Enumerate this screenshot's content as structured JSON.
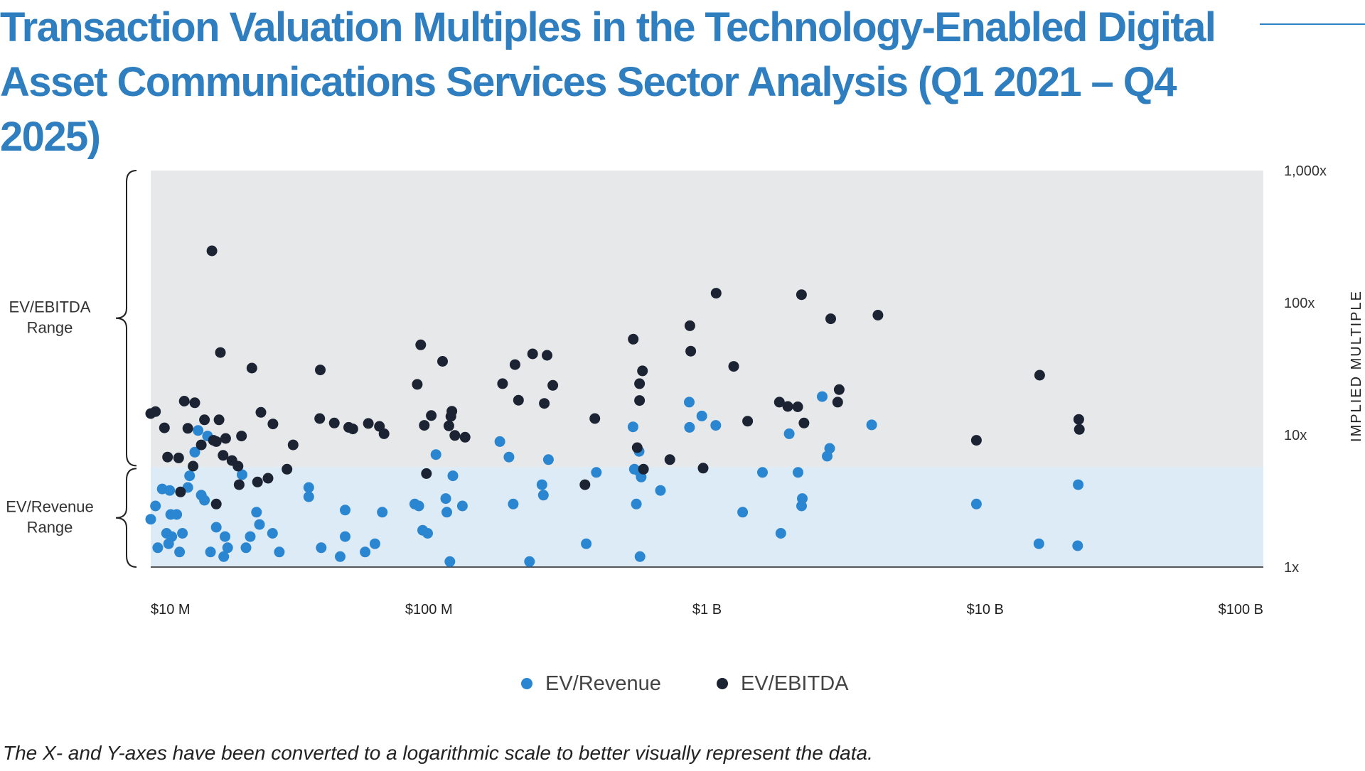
{
  "page": {
    "title": "Transaction Valuation Multiples in the Technology-Enabled Digital Asset Communications Services Sector Analysis (Q1 2021 – Q4 2025)",
    "footnote": "The X- and Y-axes have been converted to a logarithmic scale to better visually represent the data.",
    "colors": {
      "title": "#2f7fc0",
      "ev_revenue": "#2a86d1",
      "ev_ebitda": "#1c2333",
      "ebitda_band": "#e7e8ea",
      "revenue_band": "#ddebf7"
    }
  },
  "chart_data": {
    "type": "scatter",
    "x_scale": "log",
    "y_scale": "log",
    "xlim": [
      10,
      100000
    ],
    "ylim": [
      1,
      1000
    ],
    "x_ticks": [
      "$10 M",
      "$100 M",
      "$1 B",
      "$10 B",
      "$100 B"
    ],
    "y_ticks": [
      "1x",
      "10x",
      "100x",
      "1,000x"
    ],
    "ylabel": "IMPLIED MULTIPLE",
    "grid": false,
    "legend_position": "bottom-center",
    "bands": [
      {
        "label": "EV/EBITDA Range",
        "y_range": [
          5.7,
          1000
        ]
      },
      {
        "label": "EV/Revenue Range",
        "y_range": [
          1,
          5.7
        ]
      }
    ],
    "series": [
      {
        "name": "EV/Revenue",
        "color": "#2a86d1",
        "points": [
          [
            10,
            2.3
          ],
          [
            10.4,
            2.9
          ],
          [
            10.6,
            1.4
          ],
          [
            11,
            3.9
          ],
          [
            11.4,
            1.8
          ],
          [
            11.6,
            1.5
          ],
          [
            11.7,
            3.8
          ],
          [
            11.8,
            2.5
          ],
          [
            11.9,
            1.7
          ],
          [
            12.4,
            2.5
          ],
          [
            12.7,
            1.3
          ],
          [
            13,
            1.8
          ],
          [
            13.6,
            4
          ],
          [
            13.8,
            4.9
          ],
          [
            14.4,
            7.4
          ],
          [
            14.8,
            10.8
          ],
          [
            15.2,
            3.5
          ],
          [
            15.6,
            3.2
          ],
          [
            16,
            9.8
          ],
          [
            16.4,
            1.3
          ],
          [
            17.2,
            2
          ],
          [
            18.3,
            1.2
          ],
          [
            18.5,
            1.7
          ],
          [
            18.9,
            1.4
          ],
          [
            21.3,
            5
          ],
          [
            22,
            1.4
          ],
          [
            22.8,
            1.7
          ],
          [
            24,
            2.6
          ],
          [
            24.6,
            2.1
          ],
          [
            27.4,
            1.8
          ],
          [
            29,
            1.3
          ],
          [
            37,
            4
          ],
          [
            37,
            3.4
          ],
          [
            41,
            1.4
          ],
          [
            48,
            1.2
          ],
          [
            50,
            2.7
          ],
          [
            50,
            1.7
          ],
          [
            59,
            1.3
          ],
          [
            64,
            1.5
          ],
          [
            68,
            2.6
          ],
          [
            89,
            3
          ],
          [
            92,
            2.9
          ],
          [
            95,
            1.9
          ],
          [
            99,
            1.8
          ],
          [
            106,
            7.1
          ],
          [
            115,
            3.3
          ],
          [
            116,
            2.6
          ],
          [
            119,
            1.1
          ],
          [
            122,
            4.9
          ],
          [
            132,
            2.9
          ],
          [
            180,
            8.9
          ],
          [
            194,
            6.8
          ],
          [
            201,
            3
          ],
          [
            230,
            1.1
          ],
          [
            255,
            4.2
          ],
          [
            258,
            3.5
          ],
          [
            269,
            6.5
          ],
          [
            368,
            1.5
          ],
          [
            400,
            5.2
          ],
          [
            542,
            11.5
          ],
          [
            548,
            5.5
          ],
          [
            557,
            3
          ],
          [
            570,
            7.5
          ],
          [
            570,
            5.3
          ],
          [
            574,
            1.2
          ],
          [
            580,
            4.8
          ],
          [
            680,
            3.8
          ],
          [
            863,
            17.7
          ],
          [
            865,
            11.4
          ],
          [
            958,
            13.9
          ],
          [
            1075,
            11.8
          ],
          [
            1343,
            2.6
          ],
          [
            1583,
            5.2
          ],
          [
            1842,
            1.8
          ],
          [
            1975,
            10.2
          ],
          [
            2124,
            5.2
          ],
          [
            2188,
            2.9
          ],
          [
            2200,
            3.3
          ],
          [
            2594,
            19.5
          ],
          [
            2704,
            6.9
          ],
          [
            2760,
            7.9
          ],
          [
            3908,
            11.9
          ],
          [
            9300,
            3
          ],
          [
            15600,
            1.5
          ],
          [
            21500,
            1.45
          ],
          [
            21600,
            4.2
          ]
        ]
      },
      {
        "name": "EV/EBITDA",
        "color": "#1c2333",
        "points": [
          [
            10,
            14.5
          ],
          [
            10.4,
            15
          ],
          [
            11.2,
            11.3
          ],
          [
            11.5,
            6.8
          ],
          [
            12.6,
            6.7
          ],
          [
            12.8,
            3.7
          ],
          [
            13.2,
            18
          ],
          [
            13.6,
            11.2
          ],
          [
            14.2,
            5.8
          ],
          [
            14.4,
            17.5
          ],
          [
            15.2,
            8.4
          ],
          [
            15.6,
            13
          ],
          [
            16.6,
            247
          ],
          [
            16.8,
            9.1
          ],
          [
            17.2,
            3
          ],
          [
            17.2,
            8.9
          ],
          [
            17.6,
            13
          ],
          [
            17.8,
            42
          ],
          [
            18.2,
            7
          ],
          [
            18.6,
            9.4
          ],
          [
            19.6,
            6.4
          ],
          [
            20.6,
            5.8
          ],
          [
            20.8,
            4.2
          ],
          [
            21.2,
            9.8
          ],
          [
            23.1,
            32
          ],
          [
            24.2,
            4.4
          ],
          [
            24.9,
            14.8
          ],
          [
            26.4,
            4.7
          ],
          [
            27.5,
            12.1
          ],
          [
            30.9,
            5.5
          ],
          [
            32.5,
            8.4
          ],
          [
            40.7,
            31
          ],
          [
            40.5,
            13.3
          ],
          [
            45.7,
            12.3
          ],
          [
            51.5,
            11.4
          ],
          [
            53.3,
            11.1
          ],
          [
            60.6,
            12.2
          ],
          [
            66.4,
            11.6
          ],
          [
            69,
            10.2
          ],
          [
            90.8,
            24.1
          ],
          [
            93.5,
            48
          ],
          [
            96.3,
            11.8
          ],
          [
            98,
            5.1
          ],
          [
            102,
            14
          ],
          [
            112,
            36
          ],
          [
            118,
            11.7
          ],
          [
            120,
            13.8
          ],
          [
            121,
            15.1
          ],
          [
            124,
            9.9
          ],
          [
            135,
            9.6
          ],
          [
            184,
            24.4
          ],
          [
            204,
            34
          ],
          [
            210,
            18.3
          ],
          [
            236,
            41
          ],
          [
            260,
            17.3
          ],
          [
            266,
            40
          ],
          [
            279,
            23.7
          ],
          [
            364,
            4.2
          ],
          [
            395,
            13.3
          ],
          [
            543,
            53
          ],
          [
            561,
            8
          ],
          [
            572,
            24.4
          ],
          [
            572,
            18.2
          ],
          [
            586,
            30.5
          ],
          [
            591,
            5.5
          ],
          [
            735,
            6.5
          ],
          [
            868,
            67
          ],
          [
            874,
            43
          ],
          [
            968,
            5.6
          ],
          [
            1078,
            118
          ],
          [
            1247,
            33
          ],
          [
            1399,
            12.7
          ],
          [
            1820,
            17.7
          ],
          [
            1951,
            16.4
          ],
          [
            2119,
            16.3
          ],
          [
            2186,
            115
          ],
          [
            2232,
            12.3
          ],
          [
            2785,
            75.6
          ],
          [
            2950,
            17.7
          ],
          [
            2986,
            22
          ],
          [
            4116,
            80.5
          ],
          [
            9300,
            9.1
          ],
          [
            15700,
            28.3
          ],
          [
            21700,
            13.1
          ],
          [
            21800,
            11
          ]
        ]
      }
    ]
  }
}
